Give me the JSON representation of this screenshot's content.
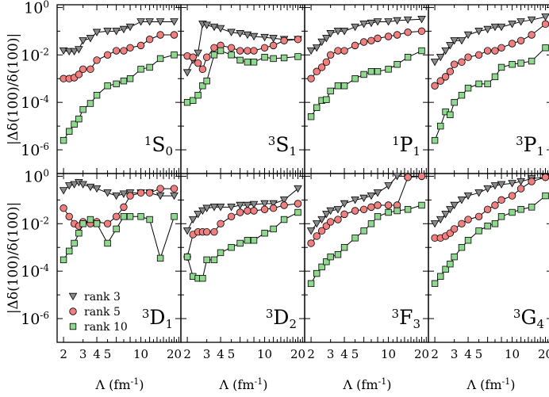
{
  "chart_data": {
    "type": "line",
    "layout": "2x4 panel grid, shared axes",
    "xscale": "log",
    "yscale": "log",
    "xlim": [
      1.75,
      23
    ],
    "ylim": [
      1e-07,
      1.3
    ],
    "xlabel": "Λ (fm",
    "xlabel_sup": "-1",
    "xlabel_close": ")",
    "ylabel": "|Δδ(100)/δ(100)|",
    "xticks": [
      {
        "value": 2,
        "label": "2"
      },
      {
        "value": 3,
        "label": "3"
      },
      {
        "value": 4,
        "label": "4"
      },
      {
        "value": 5,
        "label": "5"
      },
      {
        "value": 10,
        "label": "10"
      },
      {
        "value": 20,
        "label": "20"
      }
    ],
    "yticks": [
      {
        "mant": "10",
        "exp": "0",
        "value": 1
      },
      {
        "mant": "10",
        "exp": "-2",
        "value": 0.01
      },
      {
        "mant": "10",
        "exp": "-4",
        "value": 0.0001
      },
      {
        "mant": "10",
        "exp": "-6",
        "value": 1e-06
      }
    ],
    "legend": [
      {
        "name": "rank 3",
        "marker": "triangle-down",
        "color": "#8a8a8a"
      },
      {
        "name": "rank 5",
        "marker": "circle",
        "color": "#f08080"
      },
      {
        "name": "rank 10",
        "marker": "square",
        "color": "#90d890"
      }
    ],
    "legend_panel": "3D1",
    "x": [
      2,
      2.25,
      2.5,
      2.75,
      3,
      3.5,
      4,
      5,
      6,
      7,
      8,
      10,
      12,
      15,
      20
    ],
    "panels": [
      {
        "id": "1S0",
        "sup": "1",
        "main": "S",
        "sub": "0",
        "row": 0,
        "col": 0,
        "series": {
          "rank 3": [
            0.015,
            0.014,
            0.014,
            0.017,
            0.04,
            0.05,
            0.09,
            0.1,
            0.1,
            0.12,
            0.15,
            0.25,
            0.25,
            0.25,
            0.25
          ],
          "rank 5": [
            0.001,
            0.001,
            0.0011,
            0.0015,
            0.0025,
            0.0025,
            0.006,
            0.01,
            0.015,
            0.015,
            0.02,
            0.025,
            0.045,
            0.07,
            0.07
          ],
          "rank 10": [
            2.5e-06,
            6e-06,
            1.2e-05,
            2e-05,
            5e-05,
            9e-05,
            0.0002,
            0.0005,
            0.0006,
            0.0008,
            0.001,
            0.0025,
            0.003,
            0.007,
            0.01
          ]
        }
      },
      {
        "id": "3S1",
        "sup": "3",
        "main": "S",
        "sub": "1",
        "row": 0,
        "col": 1,
        "series": {
          "rank 3": [
            0.0018,
            0.006,
            0.012,
            0.2,
            0.18,
            0.15,
            0.13,
            0.09,
            0.08,
            0.07,
            0.06,
            0.055,
            0.05,
            0.045,
            0.045
          ],
          "rank 5": [
            0.009,
            0.008,
            0.0045,
            0.0025,
            0.008,
            0.02,
            0.025,
            0.02,
            0.015,
            0.015,
            0.015,
            0.02,
            0.025,
            0.04,
            0.045
          ],
          "rank 10": [
            0.0001,
            0.00012,
            0.0002,
            0.0005,
            0.0008,
            0.01,
            0.015,
            0.01,
            0.006,
            0.005,
            0.005,
            0.008,
            0.007,
            0.0075,
            0.0085
          ]
        }
      },
      {
        "id": "1P1",
        "sup": "1",
        "main": "P",
        "sub": "1",
        "row": 0,
        "col": 2,
        "series": {
          "rank 3": [
            0.015,
            0.02,
            0.035,
            0.05,
            0.08,
            0.1,
            0.1,
            0.15,
            0.2,
            0.22,
            0.25,
            0.25,
            0.28,
            0.3,
            0.32
          ],
          "rank 5": [
            0.001,
            0.002,
            0.003,
            0.005,
            0.01,
            0.015,
            0.015,
            0.025,
            0.035,
            0.04,
            0.05,
            0.06,
            0.07,
            0.09,
            0.1
          ],
          "rank 10": [
            2.5e-05,
            6e-05,
            0.00012,
            0.00013,
            0.0003,
            0.0005,
            0.0005,
            0.001,
            0.0015,
            0.002,
            0.002,
            0.0025,
            0.004,
            0.008,
            0.015
          ]
        }
      },
      {
        "id": "3P1",
        "sup": "3",
        "main": "P",
        "sub": "1",
        "row": 0,
        "col": 3,
        "series": {
          "rank 3": [
            0.005,
            0.008,
            0.015,
            0.025,
            0.04,
            0.04,
            0.07,
            0.1,
            0.12,
            0.15,
            0.15,
            0.2,
            0.25,
            0.3,
            0.4
          ],
          "rank 5": [
            0.0005,
            0.0008,
            0.0012,
            0.002,
            0.004,
            0.005,
            0.008,
            0.01,
            0.015,
            0.015,
            0.02,
            0.03,
            0.04,
            0.07,
            0.2
          ],
          "rank 10": [
            2.5e-06,
            1e-05,
            4e-05,
            3e-05,
            0.0001,
            0.0002,
            0.0004,
            0.0006,
            0.0006,
            0.0012,
            0.003,
            0.004,
            0.0045,
            0.0055,
            0.02
          ]
        }
      },
      {
        "id": "3D1",
        "sup": "3",
        "main": "D",
        "sub": "1",
        "row": 1,
        "col": 0,
        "series": {
          "rank 3": [
            0.25,
            0.4,
            0.45,
            0.55,
            0.45,
            0.35,
            0.3,
            0.2,
            0.15,
            0.18,
            0.2,
            0.2,
            0.2,
            0.15,
            0.15
          ],
          "rank 5": [
            0.045,
            0.02,
            0.01,
            0.008,
            0.012,
            0.01,
            0.012,
            0.01,
            0.02,
            0.05,
            0.15,
            0.2,
            0.2,
            0.3,
            0.3
          ],
          "rank 10": [
            0.0003,
            0.0007,
            0.0015,
            0.004,
            0.01,
            0.015,
            0.01,
            0.0015,
            0.006,
            0.02,
            0.02,
            0.02,
            0.015,
            0.00035,
            0.02
          ]
        }
      },
      {
        "id": "3D2",
        "sup": "3",
        "main": "D",
        "sub": "2",
        "row": 1,
        "col": 1,
        "series": {
          "rank 3": [
            0.005,
            0.015,
            0.025,
            0.035,
            0.045,
            0.05,
            0.05,
            0.05,
            0.06,
            0.06,
            0.065,
            0.07,
            0.07,
            0.1,
            0.3
          ],
          "rank 5": [
            0.0004,
            0.0035,
            0.0045,
            0.0045,
            0.0045,
            0.0045,
            0.01,
            0.02,
            0.03,
            0.035,
            0.035,
            0.04,
            0.045,
            0.06,
            0.07
          ],
          "rank 10": [
            0.0004,
            6e-05,
            5e-05,
            5e-05,
            0.0003,
            0.0003,
            0.0006,
            0.001,
            0.0015,
            0.002,
            0.002,
            0.004,
            0.006,
            0.015,
            0.03
          ]
        }
      },
      {
        "id": "3F3",
        "sup": "3",
        "main": "F",
        "sub": "3",
        "row": 1,
        "col": 2,
        "series": {
          "rank 3": [
            0.005,
            0.01,
            0.015,
            0.025,
            0.035,
            0.04,
            0.07,
            0.1,
            0.12,
            0.15,
            0.2,
            0.4,
            1.0,
            1.0,
            1.0
          ],
          "rank 5": [
            0.0015,
            0.003,
            0.005,
            0.008,
            0.012,
            0.015,
            0.025,
            0.035,
            0.04,
            0.05,
            0.06,
            0.06,
            0.06,
            0.9,
            1.0
          ],
          "rank 10": [
            3e-05,
            8e-05,
            0.00015,
            0.00025,
            0.0004,
            0.0005,
            0.001,
            0.0025,
            0.005,
            0.01,
            0.02,
            0.03,
            0.035,
            0.04,
            0.06
          ]
        }
      },
      {
        "id": "3G4",
        "sup": "3",
        "main": "G",
        "sub": "4",
        "row": 1,
        "col": 3,
        "series": {
          "rank 3": [
            0.01,
            0.015,
            0.025,
            0.04,
            0.06,
            0.1,
            0.15,
            0.2,
            0.3,
            0.4,
            0.45,
            0.5,
            0.6,
            0.8,
            0.9
          ],
          "rank 5": [
            0.0025,
            0.0025,
            0.003,
            0.004,
            0.006,
            0.01,
            0.015,
            0.02,
            0.04,
            0.06,
            0.1,
            0.15,
            0.3,
            0.6,
            0.9
          ],
          "rank 10": [
            3e-05,
            6e-05,
            0.00012,
            0.0002,
            0.0004,
            0.001,
            0.002,
            0.005,
            0.008,
            0.01,
            0.02,
            0.03,
            0.04,
            0.05,
            0.15
          ]
        }
      }
    ]
  }
}
